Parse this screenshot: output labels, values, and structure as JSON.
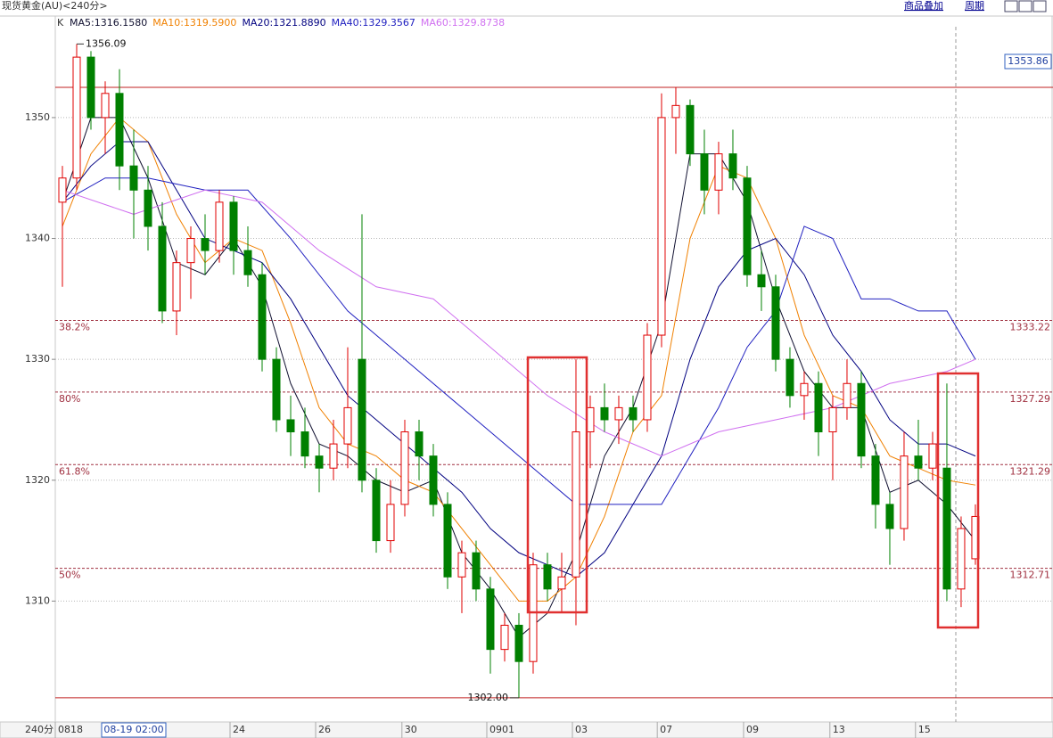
{
  "chart_data": {
    "type": "candlestick",
    "title": "现货黄金(AU)<240分>",
    "menu": [
      "商品叠加",
      "周期"
    ],
    "indicator_label": "K",
    "period_label": "240分",
    "cursor_time": "08-19 02:00",
    "cursor_price": "1353.86",
    "up_color": "#e00000",
    "down_color": "#008000",
    "grid": true,
    "xlim": [
      -0.5,
      69.44
    ],
    "ylim": [
      1300,
      1358.4
    ],
    "yticks": [
      1310,
      1320,
      1330,
      1340,
      1350
    ],
    "xticks": [
      {
        "value": -0.5,
        "label": "0818"
      },
      {
        "value": 11.75,
        "label": "24"
      },
      {
        "value": 17.75,
        "label": "26"
      },
      {
        "value": 23.8,
        "label": "30"
      },
      {
        "value": 29.75,
        "label": "0901"
      },
      {
        "value": 35.75,
        "label": "03"
      },
      {
        "value": 41.7,
        "label": "07"
      },
      {
        "value": 47.75,
        "label": "09"
      },
      {
        "value": 53.8,
        "label": "13"
      },
      {
        "value": 59.8,
        "label": "15"
      }
    ],
    "open": [
      1343,
      1345,
      1355,
      1350,
      1352,
      1346,
      1344,
      1341,
      1334,
      1338,
      1340,
      1339,
      1343,
      1339,
      1337,
      1330,
      1325,
      1324,
      1322,
      1321,
      1323,
      1330,
      1320,
      1315,
      1318,
      1324,
      1322,
      1318,
      1312,
      1314,
      1311,
      1306,
      1308,
      1305,
      1313,
      1311,
      1312,
      1324,
      1326,
      1325,
      1326,
      1325,
      1332,
      1350,
      1351,
      1347,
      1344,
      1347,
      1345,
      1337,
      1336,
      1330,
      1327,
      1328,
      1324,
      1326,
      1328,
      1322,
      1318,
      1316,
      1322,
      1321,
      1321,
      1311,
      1313.5
    ],
    "high": [
      1346,
      1356.09,
      1355.5,
      1353,
      1354,
      1349,
      1346,
      1343,
      1339,
      1341,
      1342,
      1344,
      1343.5,
      1341,
      1338,
      1331,
      1327,
      1326,
      1323,
      1325,
      1331,
      1342,
      1321,
      1320,
      1325,
      1325,
      1323,
      1319,
      1315,
      1315,
      1312,
      1309,
      1309,
      1314,
      1314,
      1314,
      1330,
      1327,
      1328,
      1327,
      1327,
      1333,
      1352,
      1352.5,
      1351.5,
      1349,
      1348,
      1349,
      1346,
      1339,
      1337,
      1331,
      1329,
      1329,
      1327,
      1330,
      1329,
      1323,
      1319,
      1324,
      1325,
      1324,
      1328,
      1317,
      1318
    ],
    "low": [
      1336,
      1344,
      1349,
      1347,
      1344,
      1340,
      1339,
      1333,
      1332,
      1335,
      1337,
      1338,
      1337,
      1336,
      1329,
      1324,
      1322,
      1321,
      1319,
      1320,
      1321,
      1319,
      1314,
      1314,
      1317,
      1320,
      1317,
      1311,
      1309,
      1310,
      1304,
      1305,
      1302,
      1304,
      1310,
      1309,
      1308,
      1321,
      1324,
      1323,
      1324,
      1324,
      1331,
      1347,
      1346,
      1342,
      1342,
      1344,
      1336,
      1334,
      1329,
      1326,
      1325,
      1322,
      1320,
      1325,
      1321,
      1316,
      1313,
      1315,
      1320,
      1320,
      1310,
      1309.5,
      1313
    ],
    "close": [
      1345,
      1355,
      1350,
      1352,
      1346,
      1344,
      1341,
      1334,
      1338,
      1340,
      1339,
      1343,
      1339,
      1337,
      1330,
      1325,
      1324,
      1322,
      1321,
      1323,
      1326,
      1320,
      1315,
      1318,
      1324,
      1322,
      1318,
      1312,
      1314,
      1311,
      1306,
      1308,
      1305,
      1313,
      1311,
      1312,
      1324,
      1326,
      1325,
      1326,
      1325,
      1332,
      1350,
      1351,
      1347,
      1344,
      1347,
      1345,
      1337,
      1336,
      1330,
      1327,
      1328,
      1324,
      1326,
      1328,
      1322,
      1318,
      1316,
      1322,
      1321,
      1323,
      1311,
      1316,
      1317
    ],
    "series": [
      {
        "name": "MA5:1316.1580",
        "color": "#101030",
        "x": [
          0,
          2,
          4,
          6,
          8,
          10,
          12,
          14,
          16,
          18,
          20,
          22,
          24,
          26,
          28,
          30,
          32,
          34,
          36,
          38,
          40,
          42,
          44,
          46,
          48,
          50,
          52,
          54,
          56,
          58,
          60,
          62,
          64
        ],
        "values": [
          1343,
          1350,
          1350,
          1345,
          1338,
          1337,
          1340,
          1336,
          1328,
          1323,
          1322,
          1320,
          1319,
          1320,
          1314,
          1311,
          1307,
          1309,
          1314,
          1322,
          1326,
          1333,
          1347,
          1347,
          1343,
          1335,
          1329,
          1326,
          1326,
          1319,
          1320,
          1318,
          1315
        ]
      },
      {
        "name": "MA10:1319.5900",
        "color": "#f08000",
        "x": [
          0,
          2,
          4,
          6,
          8,
          10,
          12,
          14,
          16,
          18,
          20,
          22,
          24,
          26,
          28,
          30,
          32,
          34,
          36,
          38,
          40,
          42,
          44,
          46,
          48,
          50,
          52,
          54,
          56,
          58,
          60,
          62,
          64
        ],
        "values": [
          1341,
          1347,
          1350,
          1348,
          1342,
          1338,
          1340,
          1339,
          1333,
          1326,
          1323,
          1322,
          1320,
          1319,
          1316,
          1313,
          1310,
          1310,
          1312,
          1317,
          1324,
          1327,
          1340,
          1346,
          1345,
          1340,
          1332,
          1327,
          1326,
          1322,
          1321,
          1320,
          1319.6
        ]
      },
      {
        "name": "MA20:1321.8890",
        "color": "#000080",
        "x": [
          0,
          2,
          4,
          6,
          8,
          10,
          12,
          14,
          16,
          18,
          20,
          22,
          24,
          26,
          28,
          30,
          32,
          34,
          36,
          38,
          40,
          42,
          44,
          46,
          48,
          50,
          52,
          54,
          56,
          58,
          60,
          62,
          64
        ],
        "values": [
          1343,
          1346,
          1348,
          1348,
          1344,
          1340,
          1339,
          1338,
          1335,
          1331,
          1327,
          1325,
          1323,
          1321,
          1319,
          1316,
          1314,
          1313,
          1312,
          1314,
          1318,
          1322,
          1330,
          1336,
          1339,
          1340,
          1337,
          1332,
          1329,
          1325,
          1323,
          1323,
          1322
        ]
      },
      {
        "name": "MA40:1329.3567",
        "color": "#2020c0",
        "x": [
          0,
          3,
          6,
          10,
          13,
          16,
          20,
          24,
          28,
          32,
          36,
          40,
          42,
          44,
          46,
          48,
          50,
          52,
          54,
          56,
          58,
          60,
          62,
          64
        ],
        "values": [
          1343,
          1345,
          1345,
          1344,
          1344,
          1340,
          1334,
          1330,
          1326,
          1322,
          1318,
          1318,
          1318,
          1322,
          1326,
          1331,
          1334,
          1341,
          1340,
          1335,
          1335,
          1334,
          1334,
          1330
        ]
      },
      {
        "name": "MA60:1329.8738",
        "color": "#d070f0",
        "x": [
          0,
          5,
          10,
          14,
          18,
          22,
          26,
          30,
          34,
          38,
          42,
          46,
          50,
          54,
          58,
          62,
          64
        ],
        "values": [
          1344,
          1342,
          1344,
          1343,
          1339,
          1336,
          1335,
          1331,
          1327,
          1324,
          1322,
          1324,
          1325,
          1326,
          1328,
          1329,
          1330
        ]
      }
    ],
    "levels": [
      {
        "value": 1333.22,
        "label": "38.2%"
      },
      {
        "value": 1327.29,
        "label": "80%"
      },
      {
        "value": 1321.29,
        "label": "61.8%"
      },
      {
        "value": 1312.71,
        "label": "50%"
      }
    ],
    "hlines": [
      1352.5,
      1302
    ],
    "annotations": [
      {
        "x": 1,
        "value": 1356.09
      },
      {
        "x": 32,
        "value": 1302,
        "label": "1302.00"
      }
    ]
  }
}
